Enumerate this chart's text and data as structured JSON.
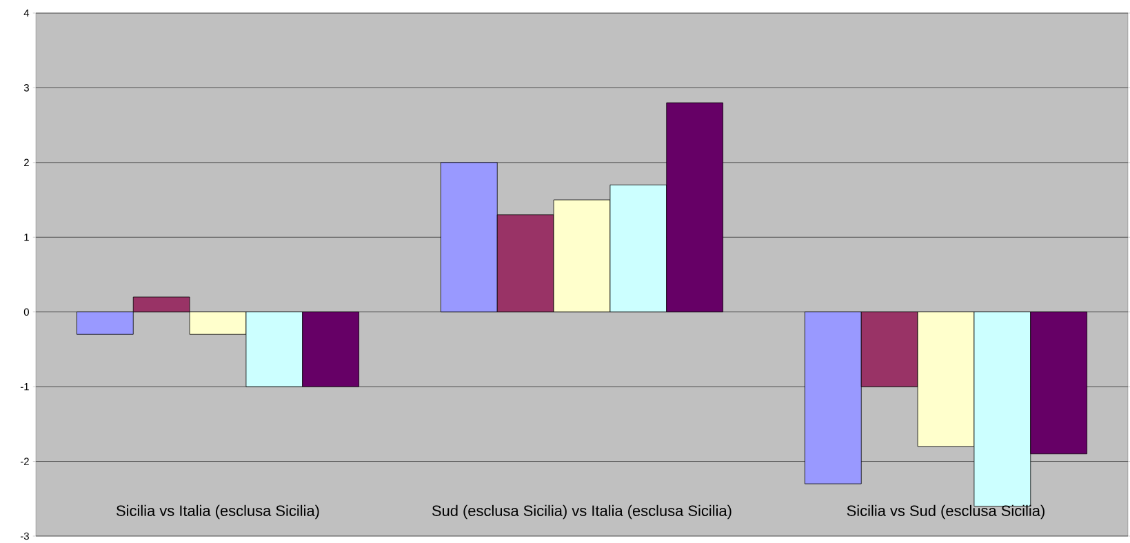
{
  "chart_data": {
    "type": "bar",
    "categories": [
      "Sicilia vs Italia (esclusa Sicilia)",
      "Sud (esclusa Sicilia) vs Italia (esclusa Sicilia)",
      "Sicilia vs Sud (esclusa Sicilia)"
    ],
    "series": [
      {
        "color": "#9999ff",
        "values": [
          -0.3,
          2,
          -2.3
        ]
      },
      {
        "color": "#993366",
        "values": [
          0.2,
          1.3,
          -1
        ]
      },
      {
        "color": "#ffffcc",
        "values": [
          -0.3,
          1.5,
          -1.8
        ]
      },
      {
        "color": "#ccffff",
        "values": [
          -1,
          1.7,
          -2.6
        ]
      },
      {
        "color": "#660066",
        "values": [
          -1,
          2.8,
          -1.9
        ]
      }
    ],
    "ylim": [
      -3,
      4
    ],
    "yticks": [
      -3,
      -2,
      -1,
      0,
      1,
      2,
      3,
      4
    ],
    "grid": "y"
  }
}
